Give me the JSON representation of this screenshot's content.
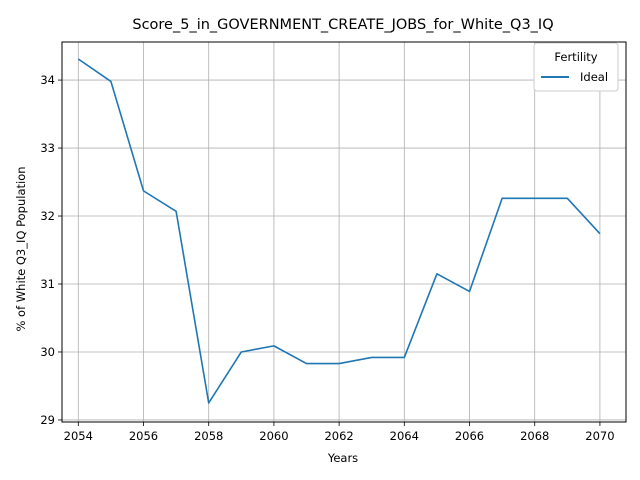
{
  "chart_data": {
    "type": "line",
    "title": "Score_5_in_GOVERNMENT_CREATE_JOBS_for_White_Q3_IQ",
    "xlabel": "Years",
    "ylabel": "% of White Q3_IQ Population",
    "xlim": [
      2053.5,
      2070.8
    ],
    "ylim": [
      28.97,
      34.56
    ],
    "xticks": [
      2054,
      2056,
      2058,
      2060,
      2062,
      2064,
      2066,
      2068,
      2070
    ],
    "yticks": [
      29,
      30,
      31,
      32,
      33,
      34
    ],
    "grid": true,
    "legend": {
      "title": "Fertility",
      "position": "top-right"
    },
    "x": [
      2054,
      2055,
      2056,
      2057,
      2058,
      2059,
      2060,
      2061,
      2062,
      2063,
      2064,
      2065,
      2066,
      2067,
      2068,
      2069,
      2070
    ],
    "series": [
      {
        "name": "Ideal",
        "color": "#1f77b4",
        "values": [
          34.31,
          33.98,
          32.37,
          32.07,
          29.25,
          30.0,
          30.09,
          29.83,
          29.83,
          29.92,
          29.92,
          31.15,
          30.89,
          32.26,
          32.26,
          32.26,
          31.74
        ]
      }
    ]
  }
}
